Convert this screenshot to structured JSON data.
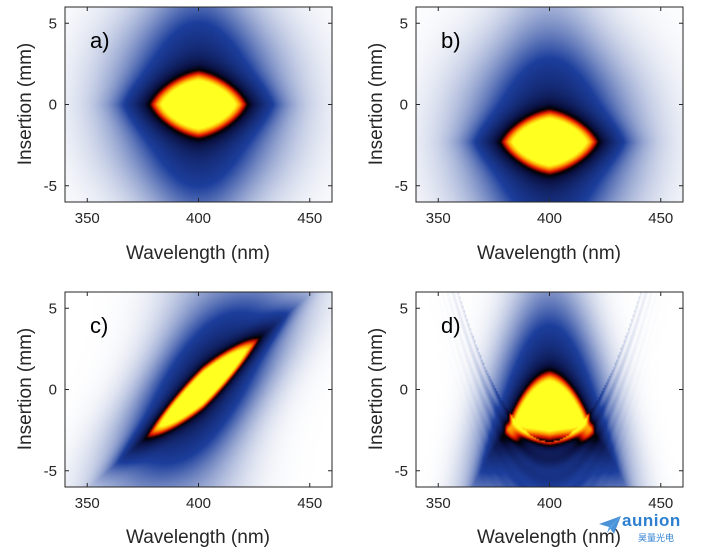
{
  "colors": {
    "colormap": [
      "#ffffff",
      "#1c3e9c",
      "#0a1040",
      "#000000",
      "#e11000",
      "#ffa500",
      "#ffff20"
    ],
    "frame": "#262626",
    "watermark": "#2d7fd0"
  },
  "chart_data": [
    {
      "type": "heatmap",
      "panel_label": "a)",
      "xlabel": "Wavelength (nm)",
      "ylabel": "Insertion (mm)",
      "xlim": [
        340,
        460
      ],
      "ylim": [
        -6,
        6
      ],
      "xticks": [
        350,
        400,
        450
      ],
      "yticks": [
        -5,
        0,
        5
      ],
      "peak": {
        "wavelength": 400,
        "insertion": 0
      },
      "shape": "symmetric lens-shaped ellipse centered at zero insertion",
      "params": {
        "sx": 16,
        "sy": 1.2,
        "tilt": 0,
        "curve": 0,
        "halo_sx": 1.6,
        "halo_sy": 3.2,
        "fringes": 0
      }
    },
    {
      "type": "heatmap",
      "panel_label": "b)",
      "xlabel": "Wavelength (nm)",
      "ylabel": "Insertion (mm)",
      "xlim": [
        340,
        460
      ],
      "ylim": [
        -6,
        6
      ],
      "xticks": [
        350,
        400,
        450
      ],
      "yticks": [
        -5,
        0,
        5
      ],
      "peak": {
        "wavelength": 400,
        "insertion": -2.3
      },
      "shape": "ellipse shifted to negative insertion",
      "params": {
        "sx": 16,
        "sy": 1.15,
        "tilt": 0,
        "curve": 0,
        "halo_sx": 1.6,
        "halo_sy": 3.4,
        "fringes": 0
      }
    },
    {
      "type": "heatmap",
      "panel_label": "c)",
      "xlabel": "Wavelength (nm)",
      "ylabel": "Insertion (mm)",
      "xlim": [
        340,
        460
      ],
      "ylim": [
        -6,
        6
      ],
      "xticks": [
        350,
        400,
        450
      ],
      "yticks": [
        -5,
        0,
        5
      ],
      "peak": {
        "wavelength": 402,
        "insertion": 0.1
      },
      "shape": "tilted ellipse, insertion increasing with wavelength",
      "params": {
        "sx": 19,
        "sy": 0.75,
        "tilt": 0.12,
        "curve": 0,
        "halo_sx": 1.4,
        "halo_sy": 3.5,
        "fringes": 0
      }
    },
    {
      "type": "heatmap",
      "panel_label": "d)",
      "xlabel": "Wavelength (nm)",
      "ylabel": "Insertion (mm)",
      "xlim": [
        340,
        460
      ],
      "ylim": [
        -6,
        6
      ],
      "xticks": [
        350,
        400,
        450
      ],
      "yticks": [
        -5,
        0,
        5
      ],
      "peak": {
        "wavelength": 400,
        "insertion": -1.0
      },
      "shape": "dome / arch shape with satellite fringes below",
      "params": {
        "sx": 15,
        "sy": 1.25,
        "tilt": 0,
        "curve": 0.0042,
        "halo_sx": 1.5,
        "halo_sy": 3.0,
        "fringes": 1
      }
    }
  ],
  "watermark": {
    "brand": "aunion",
    "subtitle": "昊量光电"
  }
}
